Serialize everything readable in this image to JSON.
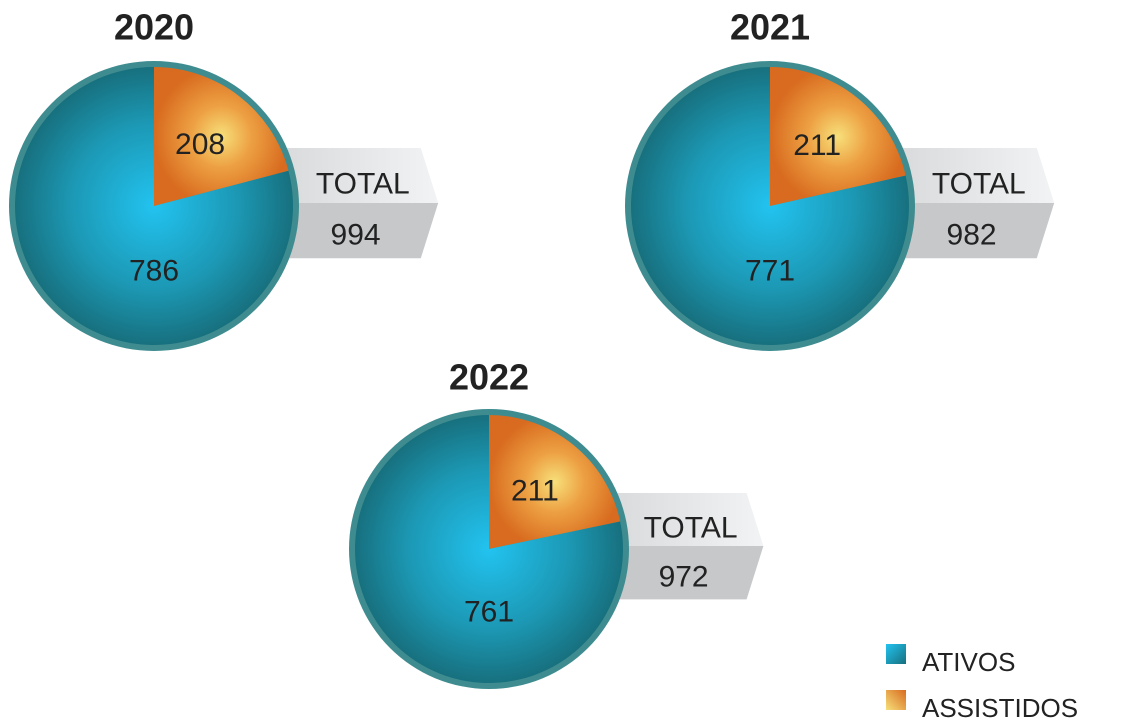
{
  "legend": [
    {
      "name": "ATIVOS",
      "color": "#1a8a9c"
    },
    {
      "name": "ASSISTIDOS",
      "color": "#e07a25"
    }
  ],
  "chart_data": [
    {
      "type": "pie",
      "title": "2020",
      "values": [
        786,
        208
      ],
      "total_label": "TOTAL",
      "total": 994
    },
    {
      "type": "pie",
      "title": "2021",
      "values": [
        771,
        211
      ],
      "total_label": "TOTAL",
      "total": 982
    },
    {
      "type": "pie",
      "title": "2022",
      "values": [
        761,
        211
      ],
      "total_label": "TOTAL",
      "total": 972
    }
  ]
}
